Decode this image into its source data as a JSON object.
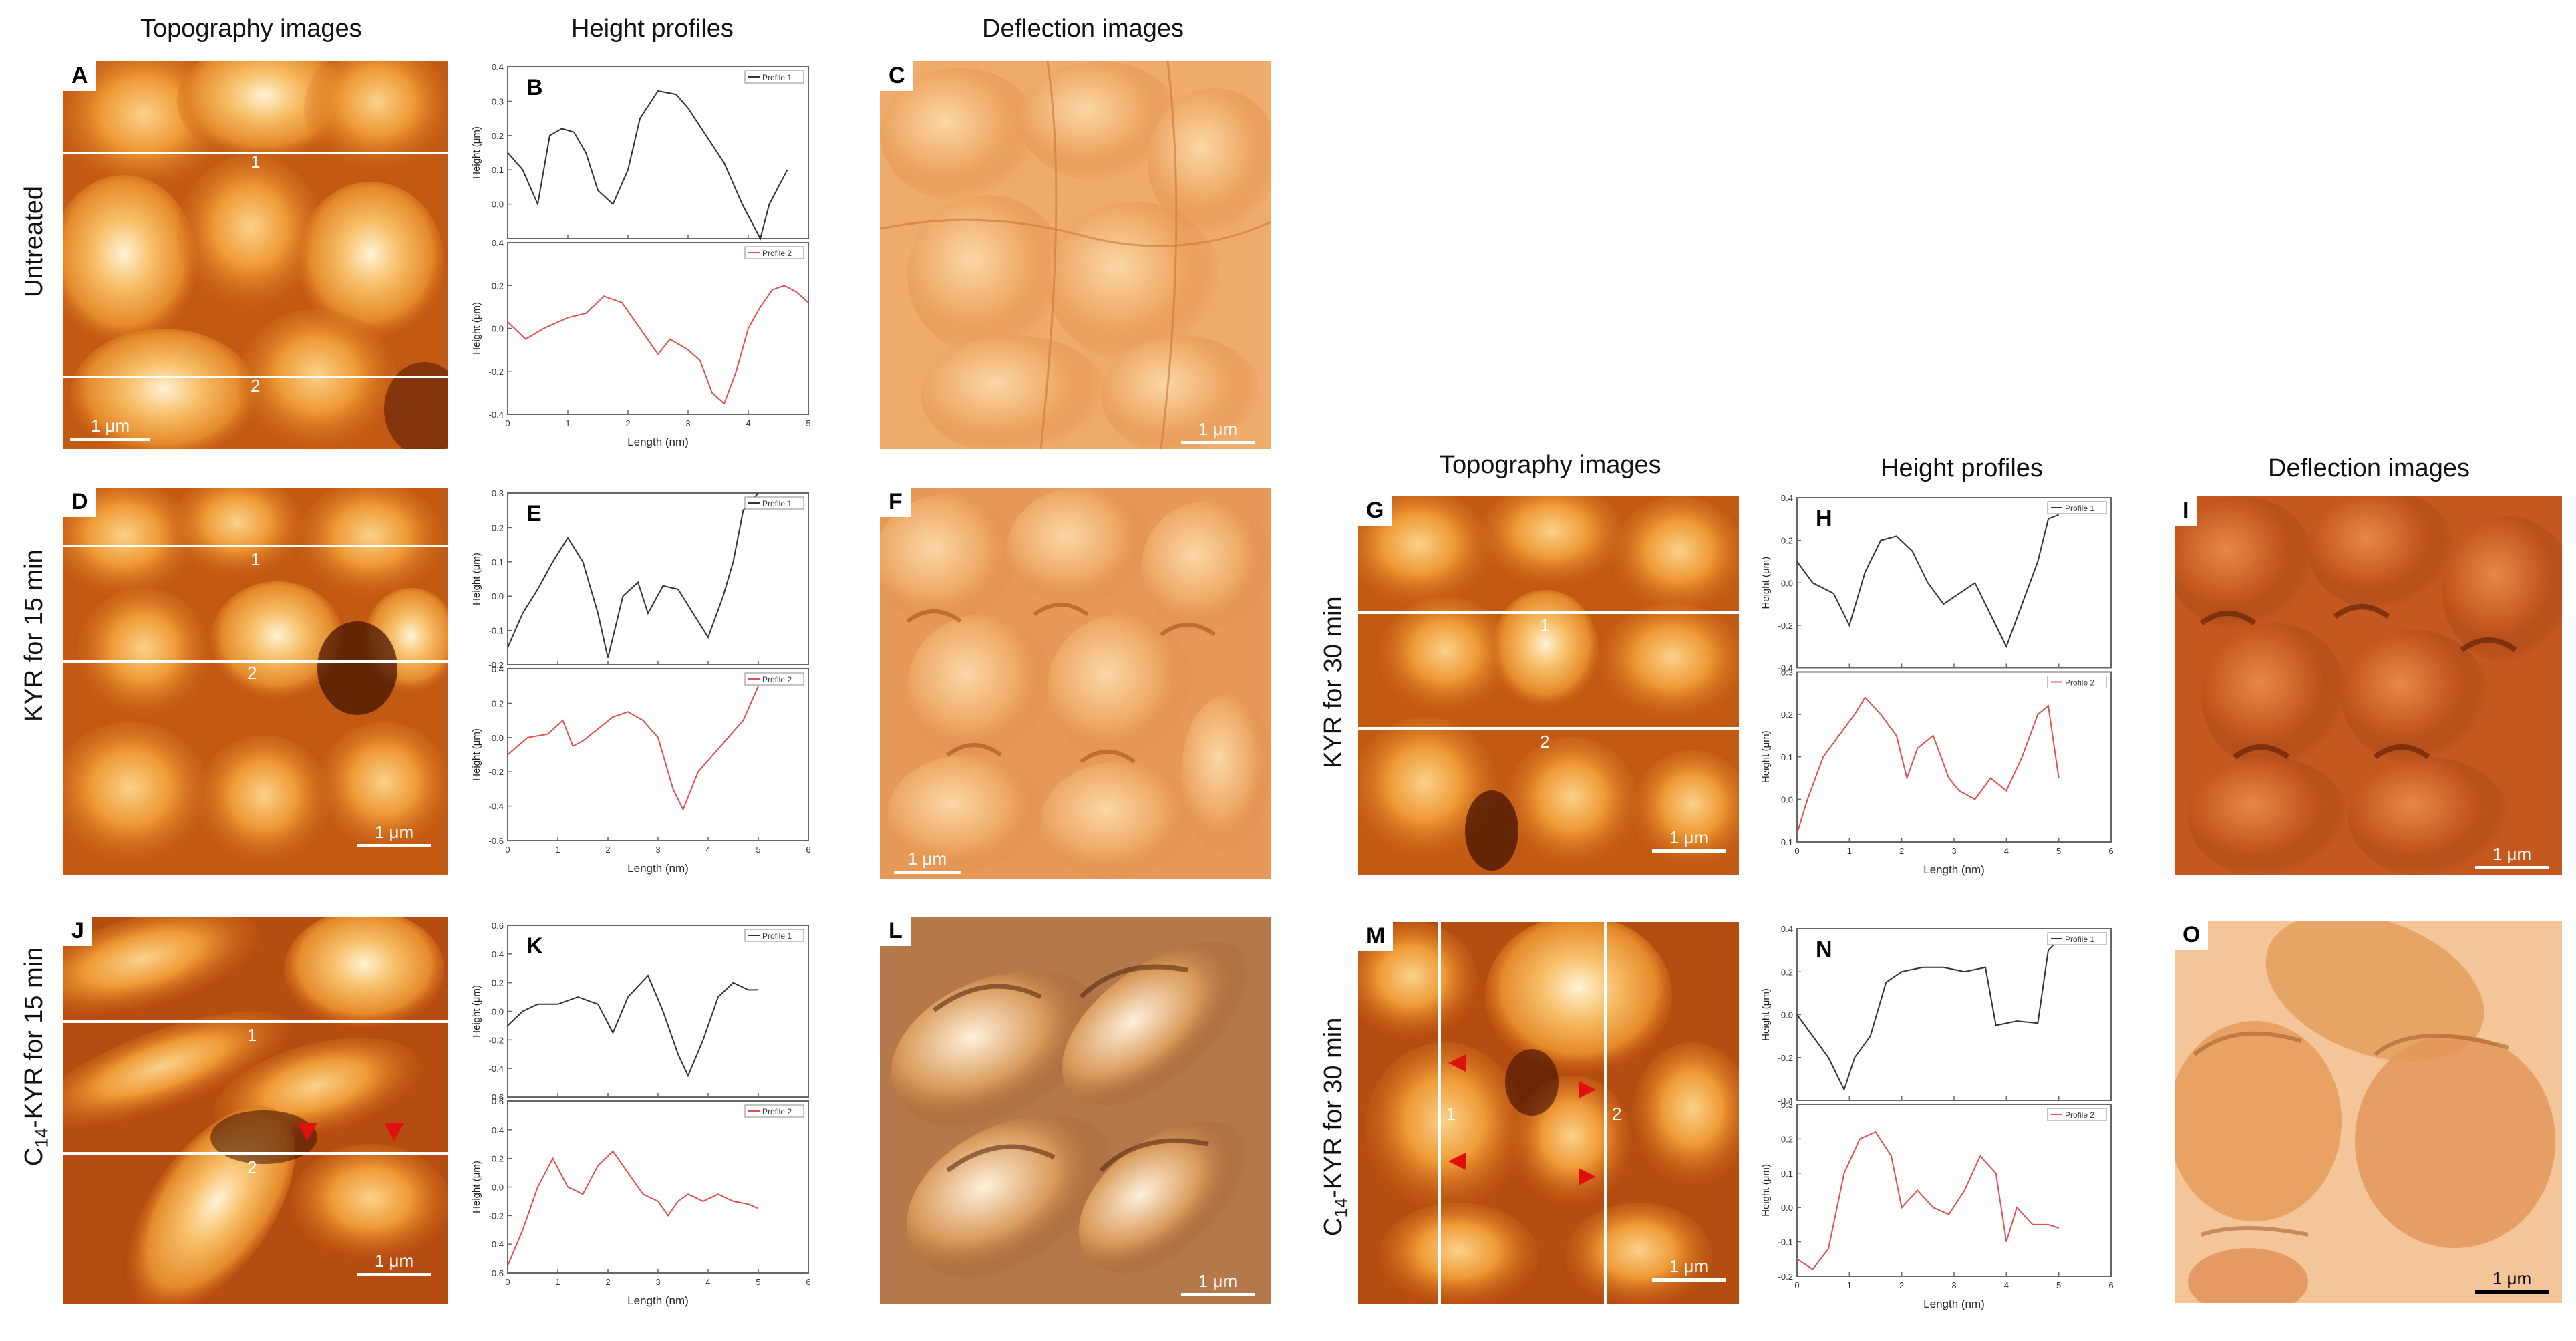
{
  "col_headers": {
    "topography": "Topography images",
    "height_profiles": "Height profiles",
    "deflection": "Deflection images"
  },
  "row_labels": {
    "untreated": "Untreated",
    "kyr15": "KYR for 15 min",
    "kyr30": "KYR for 30 min",
    "c14_15_pre": "C",
    "c14_15_sub": "14",
    "c14_15_post": "-KYR for 15 min",
    "c14_30_pre": "C",
    "c14_30_sub": "14",
    "c14_30_post": "-KYR for 30 min"
  },
  "panel_letters": [
    "A",
    "B",
    "C",
    "D",
    "E",
    "F",
    "G",
    "H",
    "I",
    "J",
    "K",
    "L",
    "M",
    "N",
    "O"
  ],
  "scale_bar": "1 μm",
  "line_numbers": [
    "1",
    "2"
  ],
  "axis": {
    "xlabel": "Length (nm)",
    "ylabel": "Height (μm)",
    "legend1": "Profile 1",
    "legend2": "Profile 2"
  },
  "chart_data": [
    {
      "panel": "B",
      "type": "line",
      "xlabel": "Length (nm)",
      "xlim": [
        0,
        5
      ],
      "x_ticks": [
        0,
        1,
        2,
        3,
        4,
        5
      ],
      "subplots": [
        {
          "ylabel": "Height (μm)",
          "ylim": [
            -0.1,
            0.4
          ],
          "y_ticks": [
            0.0,
            0.1,
            0.2,
            0.3,
            0.4
          ],
          "series": [
            {
              "name": "Profile 1",
              "color": "#333333",
              "x": [
                0,
                0.25,
                0.5,
                0.7,
                0.9,
                1.1,
                1.3,
                1.5,
                1.75,
                2.0,
                2.2,
                2.5,
                2.8,
                3.0,
                3.3,
                3.6,
                3.9,
                4.2,
                4.35,
                4.5,
                4.65
              ],
              "y": [
                0.15,
                0.1,
                0.0,
                0.2,
                0.22,
                0.21,
                0.15,
                0.04,
                0.0,
                0.1,
                0.25,
                0.33,
                0.32,
                0.28,
                0.2,
                0.12,
                0.0,
                -0.1,
                0.0,
                0.05,
                0.1
              ]
            }
          ]
        },
        {
          "ylabel": "Height (μm)",
          "ylim": [
            -0.4,
            0.4
          ],
          "y_ticks": [
            -0.4,
            -0.2,
            0.0,
            0.2,
            0.4
          ],
          "series": [
            {
              "name": "Profile 2",
              "color": "#e05050",
              "x": [
                0,
                0.3,
                0.6,
                1.0,
                1.3,
                1.6,
                1.9,
                2.2,
                2.5,
                2.7,
                3.0,
                3.2,
                3.4,
                3.6,
                3.8,
                4.0,
                4.2,
                4.4,
                4.6,
                4.8,
                5.0
              ],
              "y": [
                0.03,
                -0.05,
                0.0,
                0.05,
                0.07,
                0.15,
                0.12,
                0.0,
                -0.12,
                -0.05,
                -0.1,
                -0.15,
                -0.3,
                -0.35,
                -0.2,
                0.0,
                0.1,
                0.18,
                0.2,
                0.17,
                0.12
              ]
            }
          ]
        }
      ]
    },
    {
      "panel": "E",
      "type": "line",
      "xlabel": "Length (nm)",
      "xlim": [
        0,
        6
      ],
      "x_ticks": [
        0,
        1,
        2,
        3,
        4,
        5,
        6
      ],
      "subplots": [
        {
          "ylabel": "Height (μm)",
          "ylim": [
            -0.2,
            0.3
          ],
          "y_ticks": [
            -0.2,
            -0.1,
            0.0,
            0.1,
            0.2,
            0.3
          ],
          "series": [
            {
              "name": "Profile 1",
              "color": "#333333",
              "x": [
                0,
                0.3,
                0.6,
                0.9,
                1.2,
                1.5,
                1.8,
                2.0,
                2.3,
                2.6,
                2.8,
                3.1,
                3.4,
                3.7,
                4.0,
                4.3,
                4.5,
                4.7,
                5.0
              ],
              "y": [
                -0.15,
                -0.05,
                0.02,
                0.1,
                0.17,
                0.1,
                -0.05,
                -0.18,
                0.0,
                0.04,
                -0.05,
                0.03,
                0.02,
                -0.05,
                -0.12,
                0.0,
                0.1,
                0.25,
                0.3
              ]
            }
          ]
        },
        {
          "ylabel": "Height (μm)",
          "ylim": [
            -0.6,
            0.4
          ],
          "y_ticks": [
            -0.6,
            -0.4,
            -0.2,
            0.0,
            0.2,
            0.4
          ],
          "series": [
            {
              "name": "Profile 2",
              "color": "#e05050",
              "x": [
                0,
                0.4,
                0.8,
                1.1,
                1.3,
                1.5,
                1.8,
                2.1,
                2.4,
                2.7,
                3.0,
                3.3,
                3.5,
                3.8,
                4.1,
                4.4,
                4.7,
                5.0
              ],
              "y": [
                -0.1,
                0.0,
                0.02,
                0.1,
                -0.05,
                -0.02,
                0.05,
                0.12,
                0.15,
                0.1,
                0.0,
                -0.3,
                -0.42,
                -0.2,
                -0.1,
                0.0,
                0.1,
                0.3
              ]
            }
          ]
        }
      ]
    },
    {
      "panel": "H",
      "type": "line",
      "xlabel": "Length (nm)",
      "xlim": [
        0,
        6
      ],
      "x_ticks": [
        0,
        1,
        2,
        3,
        4,
        5,
        6
      ],
      "subplots": [
        {
          "ylabel": "Height (μm)",
          "ylim": [
            -0.4,
            0.4
          ],
          "y_ticks": [
            -0.4,
            -0.2,
            0.0,
            0.2,
            0.4
          ],
          "series": [
            {
              "name": "Profile 1",
              "color": "#333333",
              "x": [
                0,
                0.3,
                0.7,
                1.0,
                1.3,
                1.6,
                1.9,
                2.2,
                2.5,
                2.8,
                3.1,
                3.4,
                3.7,
                4.0,
                4.3,
                4.6,
                4.8,
                5.0
              ],
              "y": [
                0.1,
                0.0,
                -0.05,
                -0.2,
                0.05,
                0.2,
                0.22,
                0.15,
                0.0,
                -0.1,
                -0.05,
                0.0,
                -0.15,
                -0.3,
                -0.1,
                0.1,
                0.3,
                0.32
              ]
            }
          ]
        },
        {
          "ylabel": "Height (μm)",
          "ylim": [
            -0.1,
            0.3
          ],
          "y_ticks": [
            -0.1,
            0.0,
            0.1,
            0.2,
            0.3
          ],
          "series": [
            {
              "name": "Profile 2",
              "color": "#e05050",
              "x": [
                0,
                0.2,
                0.5,
                0.8,
                1.1,
                1.3,
                1.6,
                1.9,
                2.1,
                2.3,
                2.6,
                2.9,
                3.1,
                3.4,
                3.7,
                4.0,
                4.3,
                4.6,
                4.8,
                5.0
              ],
              "y": [
                -0.08,
                0.0,
                0.1,
                0.15,
                0.2,
                0.24,
                0.2,
                0.15,
                0.05,
                0.12,
                0.15,
                0.05,
                0.02,
                0.0,
                0.05,
                0.02,
                0.1,
                0.2,
                0.22,
                0.05
              ]
            }
          ]
        }
      ]
    },
    {
      "panel": "K",
      "type": "line",
      "xlabel": "Length (nm)",
      "xlim": [
        0,
        6
      ],
      "x_ticks": [
        0,
        1,
        2,
        3,
        4,
        5,
        6
      ],
      "subplots": [
        {
          "ylabel": "Height (μm)",
          "ylim": [
            -0.6,
            0.6
          ],
          "y_ticks": [
            -0.6,
            -0.4,
            -0.2,
            0.0,
            0.2,
            0.4,
            0.6
          ],
          "series": [
            {
              "name": "Profile 1",
              "color": "#333333",
              "x": [
                0,
                0.3,
                0.6,
                1.0,
                1.4,
                1.8,
                2.1,
                2.4,
                2.8,
                3.1,
                3.4,
                3.6,
                3.9,
                4.2,
                4.5,
                4.8,
                5.0
              ],
              "y": [
                -0.1,
                0.0,
                0.05,
                0.05,
                0.1,
                0.05,
                -0.15,
                0.1,
                0.25,
                0.0,
                -0.3,
                -0.45,
                -0.2,
                0.1,
                0.2,
                0.15,
                0.15
              ]
            }
          ]
        },
        {
          "ylabel": "Height (μm)",
          "ylim": [
            -0.6,
            0.6
          ],
          "y_ticks": [
            -0.6,
            -0.4,
            -0.2,
            0.0,
            0.2,
            0.4,
            0.6
          ],
          "series": [
            {
              "name": "Profile 2",
              "color": "#e05050",
              "x": [
                0,
                0.3,
                0.6,
                0.9,
                1.2,
                1.5,
                1.8,
                2.1,
                2.4,
                2.7,
                3.0,
                3.2,
                3.4,
                3.6,
                3.9,
                4.2,
                4.5,
                4.8,
                5.0
              ],
              "y": [
                -0.55,
                -0.3,
                0.0,
                0.2,
                0.0,
                -0.05,
                0.15,
                0.25,
                0.1,
                -0.05,
                -0.1,
                -0.2,
                -0.1,
                -0.05,
                -0.1,
                -0.05,
                -0.1,
                -0.12,
                -0.15
              ]
            }
          ]
        }
      ]
    },
    {
      "panel": "N",
      "type": "line",
      "xlabel": "Length (nm)",
      "xlim": [
        0,
        6
      ],
      "x_ticks": [
        0,
        1,
        2,
        3,
        4,
        5,
        6
      ],
      "subplots": [
        {
          "ylabel": "Height (μm)",
          "ylim": [
            -0.4,
            0.4
          ],
          "y_ticks": [
            -0.4,
            -0.2,
            0.0,
            0.2,
            0.4
          ],
          "series": [
            {
              "name": "Profile 1",
              "color": "#333333",
              "x": [
                0,
                0.3,
                0.6,
                0.9,
                1.1,
                1.4,
                1.7,
                2.0,
                2.4,
                2.8,
                3.2,
                3.6,
                3.8,
                4.2,
                4.6,
                4.8,
                5.0
              ],
              "y": [
                0.0,
                -0.1,
                -0.2,
                -0.35,
                -0.2,
                -0.1,
                0.15,
                0.2,
                0.22,
                0.22,
                0.2,
                0.22,
                -0.05,
                -0.03,
                -0.04,
                0.3,
                0.35
              ]
            }
          ]
        },
        {
          "ylabel": "Height (μm)",
          "ylim": [
            -0.2,
            0.3
          ],
          "y_ticks": [
            -0.2,
            -0.1,
            0.0,
            0.1,
            0.2,
            0.3
          ],
          "series": [
            {
              "name": "Profile 2",
              "color": "#e05050",
              "x": [
                0,
                0.3,
                0.6,
                0.9,
                1.2,
                1.5,
                1.8,
                2.0,
                2.3,
                2.6,
                2.9,
                3.2,
                3.5,
                3.8,
                4.0,
                4.2,
                4.5,
                4.8,
                5.0
              ],
              "y": [
                -0.15,
                -0.18,
                -0.12,
                0.1,
                0.2,
                0.22,
                0.15,
                0.0,
                0.05,
                0.0,
                -0.02,
                0.05,
                0.15,
                0.1,
                -0.1,
                0.0,
                -0.05,
                -0.05,
                -0.06
              ]
            }
          ]
        }
      ]
    }
  ]
}
